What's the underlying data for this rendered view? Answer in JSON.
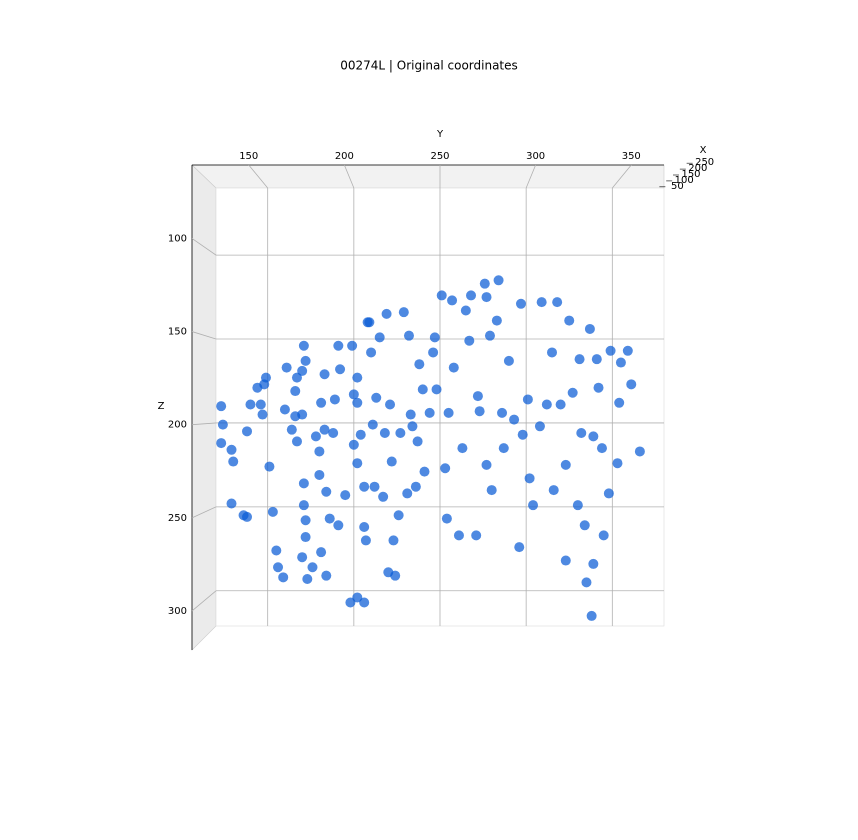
{
  "chart_data": {
    "type": "scatter3d",
    "title": "00274L | Original coordinates",
    "xlabel": "X",
    "ylabel": "Y",
    "zlabel": "Z",
    "xlim": [
      40,
      260
    ],
    "xticks": [
      50,
      100,
      150,
      200,
      250
    ],
    "ylim": [
      120,
      380
    ],
    "yticks": [
      150,
      200,
      250,
      300,
      350
    ],
    "zlim": [
      60,
      321
    ],
    "zticks": [
      100,
      150,
      200,
      250,
      300
    ],
    "zinverted": true,
    "grid": true,
    "color": "#0a5bd6",
    "y": [
      123,
      124,
      123,
      129,
      130,
      129,
      136,
      138,
      140,
      138,
      144,
      146,
      148,
      147,
      149,
      151,
      153,
      155,
      156,
      159,
      160,
      161,
      164,
      166,
      166,
      167,
      167,
      170,
      171,
      172,
      170,
      171,
      171,
      172,
      172,
      170,
      173,
      176,
      178,
      180,
      180,
      181,
      183,
      183,
      184,
      184,
      181,
      186,
      188,
      189,
      191,
      191,
      192,
      195,
      199,
      200,
      200,
      202,
      202,
      202,
      204,
      206,
      206,
      207,
      208,
      209,
      210,
      211,
      212,
      213,
      215,
      218,
      217,
      219,
      220,
      221,
      222,
      223,
      224,
      226,
      227,
      229,
      231,
      232,
      233,
      234,
      236,
      237,
      238,
      240,
      241,
      244,
      246,
      247,
      248,
      251,
      253,
      254,
      255,
      257,
      258,
      261,
      263,
      265,
      267,
      268,
      271,
      272,
      273,
      276,
      277,
      277,
      279,
      280,
      283,
      284,
      286,
      287,
      290,
      293,
      296,
      297,
      298,
      301,
      302,
      304,
      308,
      309,
      312,
      315,
      316,
      318,
      320,
      323,
      323,
      325,
      327,
      330,
      331,
      332,
      334,
      335,
      337,
      339,
      341,
      342,
      344,
      345,
      348,
      349,
      353,
      354,
      355,
      359,
      361,
      366,
      338,
      198,
      206,
      202,
      339
    ],
    "z": [
      190,
      201,
      212,
      216,
      223,
      248,
      255,
      256,
      189,
      205,
      179,
      189,
      177,
      195,
      173,
      226,
      253,
      276,
      286,
      292,
      192,
      167,
      204,
      196,
      181,
      173,
      211,
      169,
      154,
      163,
      195,
      236,
      249,
      258,
      268,
      280,
      293,
      286,
      208,
      217,
      231,
      188,
      171,
      204,
      241,
      291,
      277,
      257,
      206,
      186,
      154,
      261,
      168,
      243,
      154,
      213,
      183,
      173,
      224,
      188,
      207,
      262,
      238,
      270,
      140,
      140,
      158,
      201,
      238,
      185,
      149,
      206,
      244,
      135,
      289,
      189,
      223,
      270,
      291,
      255,
      206,
      134,
      242,
      148,
      195,
      202,
      238,
      211,
      165,
      180,
      229,
      194,
      158,
      149,
      180,
      124,
      227,
      257,
      194,
      127,
      167,
      267,
      215,
      133,
      151,
      124,
      267,
      184,
      193,
      117,
      225,
      125,
      148,
      240,
      139,
      115,
      194,
      215,
      163,
      198,
      274,
      129,
      207,
      186,
      233,
      249,
      202,
      128,
      189,
      158,
      240,
      128,
      189,
      282,
      225,
      139,
      182,
      249,
      162,
      206,
      261,
      295,
      144,
      208,
      162,
      179,
      215,
      267,
      242,
      157,
      224,
      188,
      164,
      157,
      177,
      217,
      315,
      307,
      307,
      304,
      284
    ]
  }
}
